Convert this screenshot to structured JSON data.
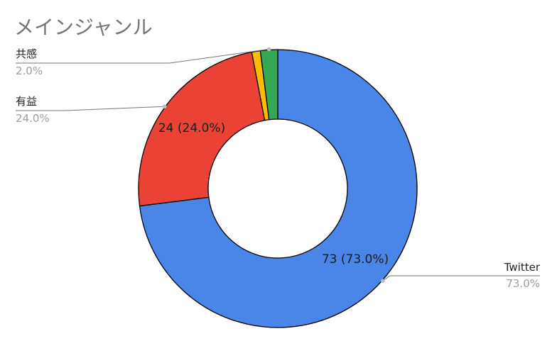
{
  "chart_data": {
    "type": "pie",
    "variant": "donut",
    "title": "メインジャンル",
    "slices": [
      {
        "name": "Twitter",
        "value": 73,
        "percent_label": "73.0%",
        "slice_label": "73 (73.0%)",
        "color": "#4a86e8"
      },
      {
        "name": "有益",
        "value": 24,
        "percent_label": "24.0%",
        "slice_label": "24 (24.0%)",
        "color": "#ea4335"
      },
      {
        "name": "",
        "value": 1,
        "percent_label": "",
        "slice_label": "",
        "color": "#fbbc04"
      },
      {
        "name": "共感",
        "value": 2,
        "percent_label": "2.0%",
        "slice_label": "",
        "color": "#34a853"
      }
    ]
  }
}
